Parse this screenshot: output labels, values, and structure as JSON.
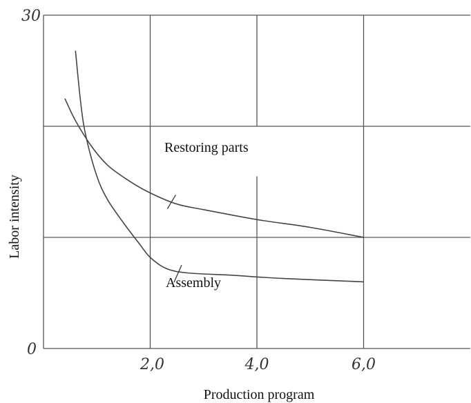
{
  "chart_data": {
    "type": "line",
    "title": "",
    "xlabel": "Production program",
    "ylabel": "Labor intensity",
    "xlim": [
      0,
      8
    ],
    "ylim": [
      0,
      30
    ],
    "x_ticks": [
      "2,0",
      "4,0",
      "6,0"
    ],
    "y_ticks": [
      "0",
      "30"
    ],
    "grid": true,
    "series": [
      {
        "name": "Restoring parts",
        "x": [
          0.4,
          0.6,
          0.9,
          1.2,
          1.6,
          2.0,
          2.5,
          3.0,
          4.0,
          5.0,
          6.0
        ],
        "y": [
          22.5,
          20.5,
          18.2,
          16.5,
          15.1,
          14.0,
          13.0,
          12.5,
          11.6,
          10.9,
          10.0
        ]
      },
      {
        "name": "Assembly",
        "x": [
          0.6,
          0.7,
          0.8,
          1.0,
          1.2,
          1.5,
          1.8,
          2.0,
          2.3,
          2.7,
          3.5,
          4.5,
          6.0
        ],
        "y": [
          26.8,
          22.0,
          19.0,
          15.5,
          13.4,
          11.3,
          9.4,
          8.2,
          7.2,
          6.8,
          6.6,
          6.3,
          6.0
        ]
      }
    ],
    "annotations": [
      {
        "text": "Restoring parts",
        "series": "Restoring parts",
        "at_x": 2.4
      },
      {
        "text": "Assembly",
        "series": "Assembly",
        "at_x": 2.55
      }
    ]
  }
}
